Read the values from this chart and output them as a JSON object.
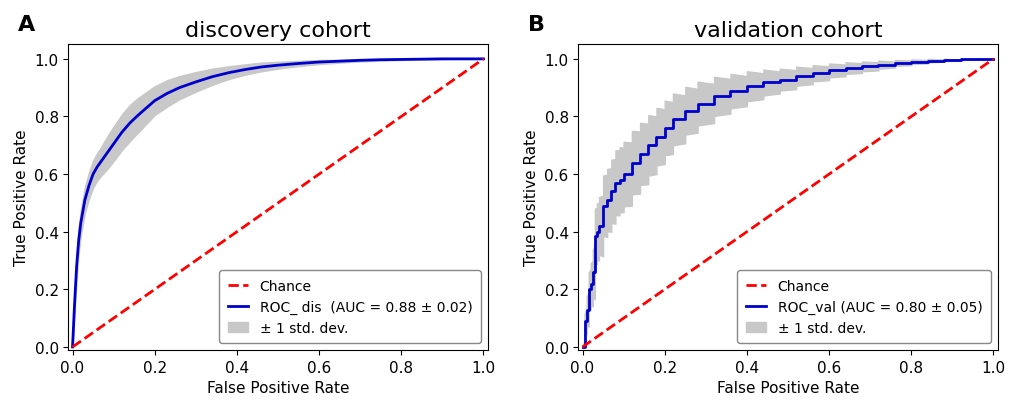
{
  "title_A": "discovery cohort",
  "title_B": "validation cohort",
  "label_A": "A",
  "label_B": "B",
  "xlabel": "False Positive Rate",
  "ylabel": "True Positive Rate",
  "legend_chance": "Chance",
  "legend_roc_dis": "ROC_ dis  (AUC = 0.88 ± 0.02)",
  "legend_roc_val": "ROC_val (AUC = 0.80 ± 0.05)",
  "legend_std": "± 1 std. dev.",
  "roc_color": "#0000CD",
  "chance_color": "#FF0000",
  "std_color": "#C8C8C8",
  "bg_color": "#ffffff",
  "title_fontsize": 16,
  "label_fontsize": 16,
  "axis_fontsize": 11,
  "legend_fontsize": 10
}
